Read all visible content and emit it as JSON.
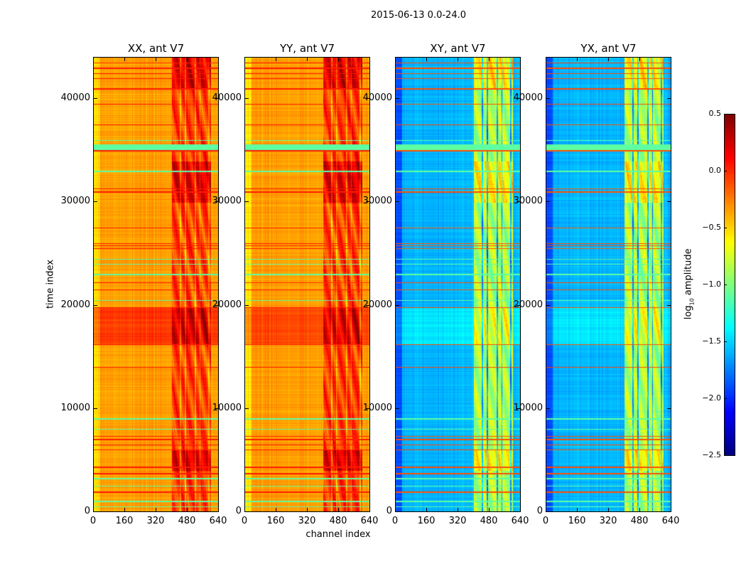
{
  "chart_data": {
    "type": "heatmap",
    "title": "2015-06-13 0.0-24.0",
    "xlabel": "channel index",
    "ylabel": "time index",
    "xlim": [
      0,
      640
    ],
    "ylim": [
      0,
      44000
    ],
    "xticks": [
      "0",
      "160",
      "320",
      "480",
      "640"
    ],
    "xtick_values": [
      0,
      160,
      320,
      480,
      640
    ],
    "yticks": [
      "0",
      "10000",
      "20000",
      "30000",
      "40000"
    ],
    "ytick_values": [
      0,
      10000,
      20000,
      30000,
      40000
    ],
    "colormap": "jet",
    "colorbar": {
      "label": "log10 amplitude",
      "label_main": "log",
      "label_sub": "10",
      "label_rest": " amplitude",
      "range": [
        -2.5,
        0.5
      ],
      "ticks": [
        "0.5",
        "0.0",
        "−0.5",
        "−1.0",
        "−1.5",
        "−2.0",
        "−2.5"
      ],
      "tick_values": [
        0.5,
        0.0,
        -0.5,
        -1.0,
        -1.5,
        -2.0,
        -2.5
      ]
    },
    "panels": [
      {
        "title": "XX, ant V7",
        "base": -0.45,
        "edge_channels_offset": -0.2,
        "active_channels": [
          400,
          600
        ],
        "active_boost": 0.3,
        "band_time": [
          16200,
          19800
        ],
        "band_boost": 0.3
      },
      {
        "title": "YY, ant V7",
        "base": -0.45,
        "edge_channels_offset": -0.2,
        "active_channels": [
          400,
          600
        ],
        "active_boost": 0.3,
        "band_time": [
          16200,
          19800
        ],
        "band_boost": 0.25
      },
      {
        "title": "XY, ant V7",
        "base": -1.7,
        "edge_channels_offset": -0.3,
        "active_channels": [
          400,
          600
        ],
        "active_boost": 0.75,
        "band_time": [
          16200,
          19800
        ],
        "band_boost": 0.15
      },
      {
        "title": "YX, ant V7",
        "base": -1.7,
        "edge_channels_offset": -0.3,
        "active_channels": [
          400,
          600
        ],
        "active_boost": 0.75,
        "band_time": [
          16200,
          19800
        ],
        "band_boost": 0.15
      }
    ],
    "flagged_rows_high": [
      1900,
      3700,
      4300,
      6000,
      6500,
      7000,
      7300,
      14000,
      16200,
      19800,
      21500,
      22200,
      25500,
      25800,
      26000,
      27500,
      31000,
      31300,
      35000,
      37500,
      39500,
      41000,
      42000,
      42500,
      43000,
      43500
    ],
    "flagged_rows_low": [
      500,
      1000,
      2500,
      3200,
      8000,
      9000,
      20500,
      23000,
      24000,
      24500,
      33000,
      35300,
      36000
    ],
    "green_band_time": [
      35100,
      35600
    ]
  }
}
